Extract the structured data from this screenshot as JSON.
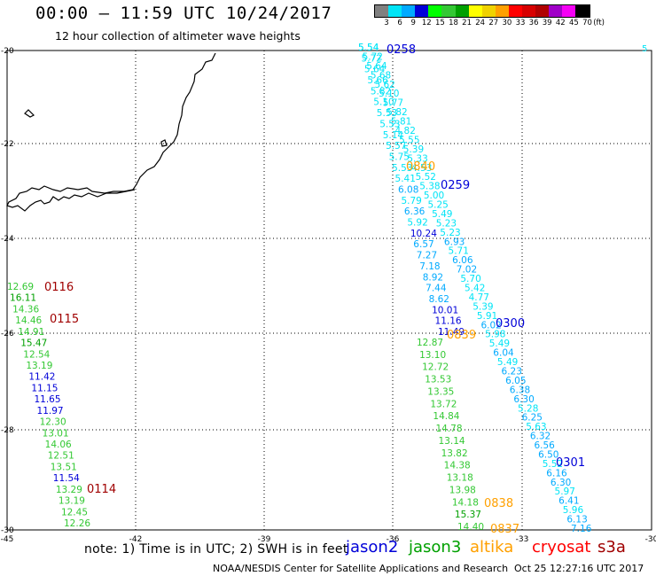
{
  "header": {
    "title": "00:00 – 11:59 UTC 10/24/2017",
    "subtitle": "12 hour collection of altimeter wave heights"
  },
  "legend": {
    "labels": [
      "3",
      "6",
      "9",
      "12",
      "15",
      "18",
      "21",
      "24",
      "27",
      "30",
      "33",
      "36",
      "39",
      "42",
      "45",
      "70",
      "(ft)"
    ],
    "colors": [
      "#808080",
      "#00e4f6",
      "#00aaff",
      "#0000d8",
      "#00ff00",
      "#33c833",
      "#00a000",
      "#ffff00",
      "#f0d200",
      "#ffa000",
      "#ff0000",
      "#d70000",
      "#b00000",
      "#a000c8",
      "#f500f5",
      "#000000"
    ]
  },
  "map": {
    "lat_labels": [
      "-20",
      "-22",
      "-24",
      "-26",
      "-28",
      "-30"
    ],
    "lon_labels": [
      "-45",
      "-42",
      "-39",
      "-36",
      "-33",
      "-30"
    ]
  },
  "passes": [
    {
      "time": "0258",
      "color": "#0000d8"
    },
    {
      "time": "0840",
      "color": "#ffa000"
    },
    {
      "time": "0259",
      "color": "#0000d8"
    },
    {
      "time": "0116",
      "color": "#a00000"
    },
    {
      "time": "0115",
      "color": "#a00000"
    },
    {
      "time": "0300",
      "color": "#0000d8"
    },
    {
      "time": "0839",
      "color": "#ffa000"
    },
    {
      "time": "0301",
      "color": "#0000d8"
    },
    {
      "time": "0114",
      "color": "#a00000"
    },
    {
      "time": "0838",
      "color": "#ffa000"
    },
    {
      "time": "0837",
      "color": "#ffa000"
    }
  ],
  "tracks": {
    "track1": [
      {
        "v": "5.54",
        "c": "#00e4f6"
      },
      {
        "v": "5.72",
        "c": "#00e4f6"
      },
      {
        "v": "5.64",
        "c": "#00e4f6"
      },
      {
        "v": "5.68",
        "c": "#00e4f6"
      },
      {
        "v": "5.62",
        "c": "#00e4f6"
      },
      {
        "v": "5.10",
        "c": "#00e4f6"
      },
      {
        "v": "5.77",
        "c": "#00e4f6"
      },
      {
        "v": "5.82",
        "c": "#00e4f6"
      },
      {
        "v": "5.81",
        "c": "#00e4f6"
      },
      {
        "v": "4.82",
        "c": "#00e4f6"
      },
      {
        "v": "5.55",
        "c": "#00e4f6"
      },
      {
        "v": "5.39",
        "c": "#00e4f6"
      },
      {
        "v": "5.33",
        "c": "#00e4f6"
      },
      {
        "v": "4.53",
        "c": "#00e4f6"
      },
      {
        "v": "5.52",
        "c": "#00e4f6"
      },
      {
        "v": "5.38",
        "c": "#00e4f6"
      },
      {
        "v": "5.00",
        "c": "#00e4f6"
      },
      {
        "v": "5.25",
        "c": "#00e4f6"
      },
      {
        "v": "5.49",
        "c": "#00e4f6"
      },
      {
        "v": "5.23",
        "c": "#00e4f6"
      },
      {
        "v": "5.23",
        "c": "#00e4f6"
      },
      {
        "v": "6.93",
        "c": "#00aaff"
      },
      {
        "v": "5.71",
        "c": "#00e4f6"
      },
      {
        "v": "6.06",
        "c": "#00aaff"
      },
      {
        "v": "7.02",
        "c": "#00aaff"
      },
      {
        "v": "5.70",
        "c": "#00e4f6"
      },
      {
        "v": "5.42",
        "c": "#00e4f6"
      },
      {
        "v": "4.77",
        "c": "#00e4f6"
      },
      {
        "v": "5.39",
        "c": "#00e4f6"
      },
      {
        "v": "5.91",
        "c": "#00e4f6"
      },
      {
        "v": "6.02",
        "c": "#00aaff"
      },
      {
        "v": "5.98",
        "c": "#00e4f6"
      },
      {
        "v": "5.49",
        "c": "#00e4f6"
      },
      {
        "v": "6.04",
        "c": "#00aaff"
      },
      {
        "v": "5.49",
        "c": "#00e4f6"
      },
      {
        "v": "6.23",
        "c": "#00aaff"
      },
      {
        "v": "6.05",
        "c": "#00aaff"
      },
      {
        "v": "6.38",
        "c": "#00aaff"
      },
      {
        "v": "6.30",
        "c": "#00aaff"
      },
      {
        "v": "5.28",
        "c": "#00e4f6"
      },
      {
        "v": "6.25",
        "c": "#00aaff"
      },
      {
        "v": "5.63",
        "c": "#00e4f6"
      },
      {
        "v": "6.32",
        "c": "#00aaff"
      },
      {
        "v": "6.56",
        "c": "#00aaff"
      },
      {
        "v": "6.50",
        "c": "#00aaff"
      },
      {
        "v": "5.52",
        "c": "#00e4f6"
      },
      {
        "v": "6.16",
        "c": "#00aaff"
      },
      {
        "v": "6.30",
        "c": "#00aaff"
      },
      {
        "v": "5.97",
        "c": "#00e4f6"
      },
      {
        "v": "6.41",
        "c": "#00aaff"
      },
      {
        "v": "5.96",
        "c": "#00e4f6"
      },
      {
        "v": "6.13",
        "c": "#00aaff"
      },
      {
        "v": "7.16",
        "c": "#00aaff"
      }
    ],
    "track2": [
      {
        "v": "5.54",
        "c": "#00e4f6"
      },
      {
        "v": "5.72",
        "c": "#00e4f6"
      },
      {
        "v": "5.64",
        "c": "#00e4f6"
      },
      {
        "v": "5.66",
        "c": "#00e4f6"
      },
      {
        "v": "5.82",
        "c": "#00e4f6"
      },
      {
        "v": "5.10",
        "c": "#00e4f6"
      },
      {
        "v": "5.53",
        "c": "#00e4f6"
      },
      {
        "v": "5.53",
        "c": "#00e4f6"
      },
      {
        "v": "5.14",
        "c": "#00e4f6"
      },
      {
        "v": "5.57",
        "c": "#00e4f6"
      },
      {
        "v": "5.75",
        "c": "#00e4f6"
      },
      {
        "v": "5.53",
        "c": "#00e4f6"
      },
      {
        "v": "5.41",
        "c": "#00e4f6"
      },
      {
        "v": "6.08",
        "c": "#00aaff"
      },
      {
        "v": "5.79",
        "c": "#00e4f6"
      },
      {
        "v": "6.36",
        "c": "#00aaff"
      },
      {
        "v": "5.92",
        "c": "#00e4f6"
      },
      {
        "v": "10.24",
        "c": "#0000d8"
      },
      {
        "v": "6.57",
        "c": "#00aaff"
      },
      {
        "v": "7.27",
        "c": "#00aaff"
      },
      {
        "v": "7.18",
        "c": "#00aaff"
      },
      {
        "v": "8.92",
        "c": "#00aaff"
      },
      {
        "v": "7.44",
        "c": "#00aaff"
      },
      {
        "v": "8.62",
        "c": "#00aaff"
      },
      {
        "v": "10.01",
        "c": "#0000d8"
      },
      {
        "v": "11.16",
        "c": "#0000d8"
      },
      {
        "v": "11.49",
        "c": "#0000d8"
      }
    ],
    "track3": [
      {
        "v": "12.87",
        "c": "#33c833"
      },
      {
        "v": "13.10",
        "c": "#33c833"
      },
      {
        "v": "12.72",
        "c": "#33c833"
      },
      {
        "v": "13.53",
        "c": "#33c833"
      },
      {
        "v": "13.35",
        "c": "#33c833"
      },
      {
        "v": "13.72",
        "c": "#33c833"
      },
      {
        "v": "14.84",
        "c": "#33c833"
      },
      {
        "v": "14.78",
        "c": "#33c833"
      },
      {
        "v": "13.14",
        "c": "#33c833"
      },
      {
        "v": "13.82",
        "c": "#33c833"
      },
      {
        "v": "14.38",
        "c": "#33c833"
      },
      {
        "v": "13.18",
        "c": "#33c833"
      },
      {
        "v": "13.98",
        "c": "#33c833"
      },
      {
        "v": "14.18",
        "c": "#33c833"
      },
      {
        "v": "15.37",
        "c": "#00a000"
      },
      {
        "v": "14.40",
        "c": "#33c833"
      }
    ],
    "track4": [
      {
        "v": "12.69",
        "c": "#33c833"
      },
      {
        "v": "16.11",
        "c": "#00a000"
      },
      {
        "v": "14.36",
        "c": "#33c833"
      },
      {
        "v": "14.46",
        "c": "#33c833"
      },
      {
        "v": "14.91",
        "c": "#33c833"
      },
      {
        "v": "15.47",
        "c": "#00a000"
      },
      {
        "v": "12.54",
        "c": "#33c833"
      },
      {
        "v": "13.19",
        "c": "#33c833"
      },
      {
        "v": "11.42",
        "c": "#0000d8"
      },
      {
        "v": "11.15",
        "c": "#0000d8"
      },
      {
        "v": "11.65",
        "c": "#0000d8"
      },
      {
        "v": "11.97",
        "c": "#0000d8"
      },
      {
        "v": "12.30",
        "c": "#33c833"
      },
      {
        "v": "13.01",
        "c": "#33c833"
      },
      {
        "v": "14.06",
        "c": "#33c833"
      },
      {
        "v": "12.51",
        "c": "#33c833"
      },
      {
        "v": "13.51",
        "c": "#33c833"
      },
      {
        "v": "11.54",
        "c": "#0000d8"
      },
      {
        "v": "13.29",
        "c": "#33c833"
      },
      {
        "v": "13.19",
        "c": "#33c833"
      },
      {
        "v": "12.45",
        "c": "#33c833"
      },
      {
        "v": "12.26",
        "c": "#33c833"
      }
    ]
  },
  "edge_mark": "5",
  "footer": {
    "note": "note:  1) Time is in UTC;  2) SWH is in feet",
    "satellites": [
      {
        "name": "jason2",
        "color": "#0000d8"
      },
      {
        "name": "jason3",
        "color": "#00a000"
      },
      {
        "name": "altika",
        "color": "#ffa000"
      },
      {
        "name": "cryosat",
        "color": "#ff0000"
      },
      {
        "name": "s3a",
        "color": "#a00000"
      }
    ],
    "credit": "NOAA/NESDIS Center for Satellite Applications and Research",
    "timestamp": "Oct 25 12:27:16 UTC 2017"
  }
}
